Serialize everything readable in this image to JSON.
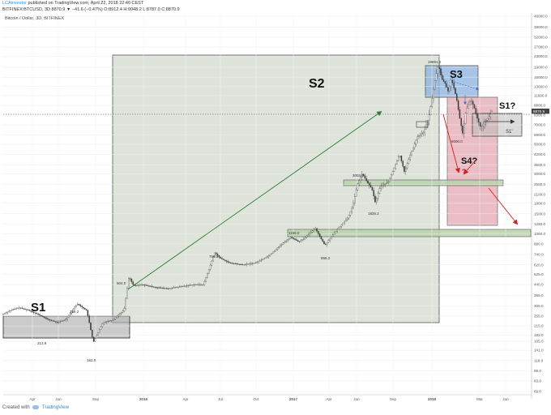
{
  "header": {
    "user": "LCAinvestor",
    "published": "published on TradingView.com, April 22, 2018 22:40 CEST",
    "ohlc": "BITFINEX:BTCUSD, 3D  8870.9  ▼ −41.6 (−0.47%) O:8912.4 H:9048.2 L:8787.0 C:8870.9",
    "symbol": "Bitcoin / Dollar, 3D, BITFINEX"
  },
  "footer": {
    "created": "Created with",
    "brand": "TradingView"
  },
  "colors": {
    "candle": "#3a3a3a",
    "s1": "#a9a9a9",
    "s2": "#c4cdbb",
    "s3": "#8ab0dd",
    "s4": "#e3a2ac",
    "band": "#b9d4a7",
    "arrow_green": "#2e7d32",
    "arrow_red": "#cc2222"
  },
  "chart_data": {
    "type": "candlestick",
    "title": "Bitcoin / Dollar, 3D, BITFINEX",
    "y_scale": "log",
    "y_ticks": [
      "46000.0",
      "38000.0",
      "32000.0",
      "27000.0",
      "23000.0",
      "19000.0",
      "16000.0",
      "13600.0",
      "11600.0",
      "9800.0",
      "8300.0",
      "7000.0",
      "5900.0",
      "5000.0",
      "4200.0",
      "3500.0",
      "3000.0",
      "2500.0",
      "2100.0",
      "1800.0",
      "1500.0",
      "1260.0",
      "1060.0",
      "890.0",
      "740.0",
      "620.0",
      "525.0",
      "440.0",
      "365.0",
      "305.0",
      "255.0",
      "215.0",
      "183.0",
      "165.0",
      "141.0",
      "118.0",
      "99.0",
      "83.0",
      "69.0"
    ],
    "x_ticks": [
      "Apr",
      "Jun",
      "Sep",
      "2016",
      "Apr",
      "Jul",
      "Oct",
      "2017",
      "Apr",
      "Jun",
      "Sep",
      "2018",
      "Mar",
      "Jun"
    ],
    "last_price": "8870.9",
    "price_labels": [
      "316.2",
      "213.9",
      "162.0",
      "504.0",
      "766.5",
      "1166.0",
      "866.2",
      "3003.0",
      "1826.2",
      "19891.0",
      "6000.0"
    ],
    "zones": [
      "S1",
      "S2",
      "S3",
      "S1?",
      "S1'",
      "S4?",
      "?"
    ],
    "price_path": [
      [
        0,
        262
      ],
      [
        8,
        278
      ],
      [
        20,
        295
      ],
      [
        32,
        282
      ],
      [
        44,
        262
      ],
      [
        56,
        240
      ],
      [
        68,
        228
      ],
      [
        78,
        240
      ],
      [
        92,
        316
      ],
      [
        104,
        280
      ],
      [
        112,
        162
      ],
      [
        124,
        228
      ],
      [
        136,
        238
      ],
      [
        150,
        284
      ],
      [
        156,
        504
      ],
      [
        162,
        430
      ],
      [
        172,
        440
      ],
      [
        188,
        420
      ],
      [
        204,
        410
      ],
      [
        220,
        425
      ],
      [
        236,
        440
      ],
      [
        248,
        440
      ],
      [
        262,
        766
      ],
      [
        268,
        700
      ],
      [
        280,
        640
      ],
      [
        296,
        620
      ],
      [
        312,
        640
      ],
      [
        328,
        720
      ],
      [
        344,
        880
      ],
      [
        356,
        1000
      ],
      [
        366,
        920
      ],
      [
        376,
        1030
      ],
      [
        386,
        1166
      ],
      [
        392,
        1000
      ],
      [
        398,
        866
      ],
      [
        404,
        980
      ],
      [
        414,
        1160
      ],
      [
        426,
        1400
      ],
      [
        432,
        1700
      ],
      [
        438,
        2500
      ],
      [
        444,
        3003
      ],
      [
        450,
        2600
      ],
      [
        456,
        2300
      ],
      [
        460,
        1826
      ],
      [
        466,
        2400
      ],
      [
        476,
        2600
      ],
      [
        484,
        3400
      ],
      [
        490,
        4200
      ],
      [
        496,
        3100
      ],
      [
        504,
        4300
      ],
      [
        512,
        5700
      ],
      [
        520,
        6200
      ],
      [
        526,
        8000
      ],
      [
        530,
        11000
      ],
      [
        534,
        15500
      ],
      [
        538,
        19891
      ],
      [
        542,
        15500
      ],
      [
        546,
        14500
      ],
      [
        550,
        12500
      ],
      [
        554,
        15600
      ],
      [
        560,
        11300
      ],
      [
        564,
        8000
      ],
      [
        568,
        6000
      ],
      [
        572,
        9000
      ],
      [
        578,
        10800
      ],
      [
        582,
        9500
      ],
      [
        586,
        7800
      ],
      [
        590,
        6700
      ],
      [
        596,
        7500
      ],
      [
        600,
        8000
      ],
      [
        604,
        8870
      ]
    ]
  }
}
